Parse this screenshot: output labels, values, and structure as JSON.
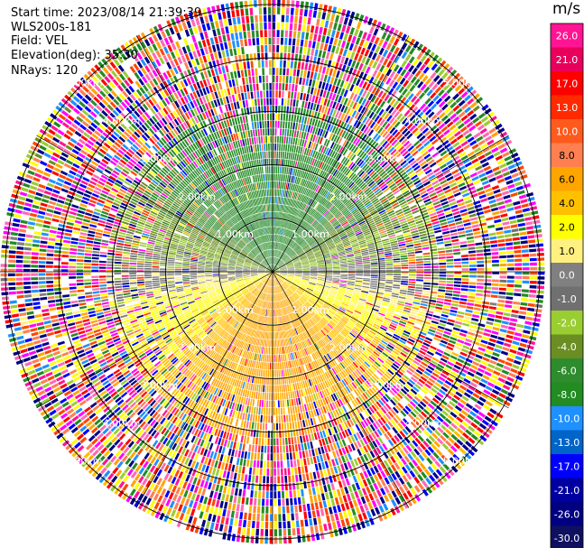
{
  "info": {
    "start_time": "Start time: 2023/08/14 21:39:39",
    "instrument": "WLS200s-181",
    "field": "Field: VEL",
    "elevation": "Elevation(deg): 35.30",
    "nrays": "NRays: 120"
  },
  "chart_data": {
    "type": "heatmap",
    "projection": "polar-ppi",
    "field": "VEL",
    "unit": "m/s",
    "ranges_km": [
      1,
      2,
      3,
      4,
      5
    ],
    "ring_labels": [
      "1.00km",
      "2.00km",
      "3.00km",
      "4.00km",
      "5.00km"
    ],
    "max_range_km": 5.1,
    "nrays": 120,
    "colorbar": {
      "ticks": [
        "26.0",
        "21.0",
        "17.0",
        "13.0",
        "10.0",
        "8.0",
        "6.0",
        "4.0",
        "2.0",
        "1.0",
        "0.0",
        "-1.0",
        "-2.0",
        "-4.0",
        "-6.0",
        "-8.0",
        "-10.0",
        "-13.0",
        "-17.0",
        "-21.0",
        "-26.0",
        "-30.0"
      ],
      "colors": [
        "#ff1493",
        "#e8005c",
        "#ff0000",
        "#ff2a00",
        "#ff5a1e",
        "#ff7f50",
        "#ffa500",
        "#ffc000",
        "#ffff00",
        "#fff080",
        "#808080",
        "#707070",
        "#9acd32",
        "#6b8e23",
        "#2e8b2e",
        "#228b22",
        "#1e90ff",
        "#0064c8",
        "#0000ff",
        "#0000a0",
        "#000080",
        "#101060"
      ]
    },
    "clutter_colors": [
      "#ff1493",
      "#ff69b4",
      "#ff0000",
      "#0000ff",
      "#000080",
      "#228b22",
      "#ffff00",
      "#ffa500",
      "#ff7f50",
      "#1e90ff",
      "#ffffff",
      "#9acd32",
      "#ff00ff",
      "#00008b",
      "#ff4500"
    ]
  }
}
